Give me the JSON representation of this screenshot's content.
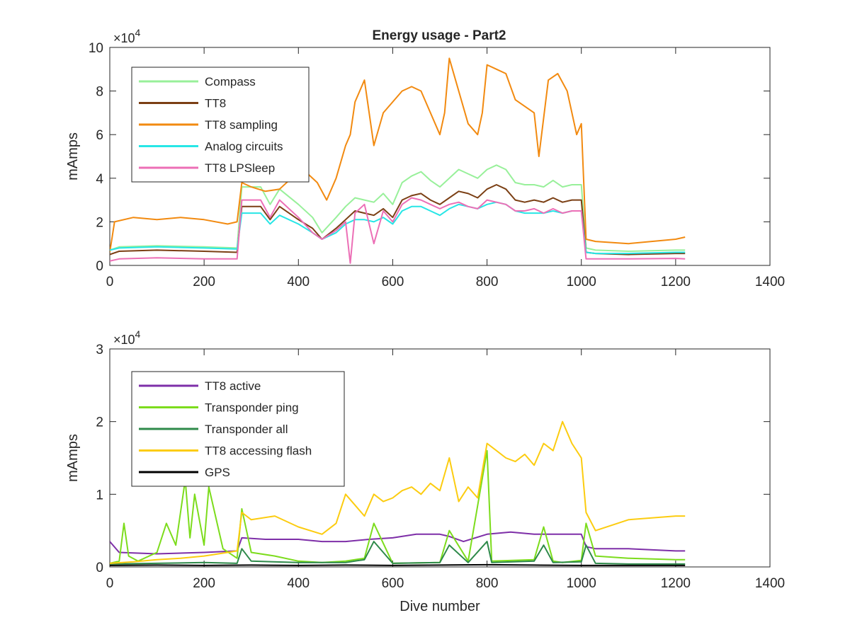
{
  "title": "Energy usage - Part2",
  "chart_data": [
    {
      "type": "line",
      "title": "Energy usage - Part2",
      "xlabel": "",
      "ylabel": "mAmps",
      "y_exponent_label": "×10",
      "y_exponent": "4",
      "xlim": [
        0,
        1400
      ],
      "ylim": [
        0,
        100000
      ],
      "x_ticks": [
        "0",
        "200",
        "400",
        "600",
        "800",
        "1000",
        "1200",
        "1400"
      ],
      "y_ticks": [
        "0",
        "2",
        "4",
        "6",
        "8",
        "10"
      ],
      "grid": false,
      "legend_position": "top-left",
      "series": [
        {
          "name": "Compass",
          "color": "#98f09a",
          "x": [
            0,
            20,
            100,
            200,
            270,
            280,
            320,
            340,
            360,
            400,
            430,
            450,
            480,
            500,
            520,
            540,
            560,
            580,
            600,
            620,
            640,
            660,
            680,
            700,
            720,
            740,
            760,
            780,
            800,
            820,
            840,
            860,
            880,
            900,
            920,
            940,
            960,
            980,
            1000,
            1010,
            1030,
            1100,
            1200,
            1220
          ],
          "values": [
            7000,
            8500,
            9000,
            8500,
            8000,
            36000,
            36000,
            28000,
            35000,
            28000,
            22000,
            15000,
            22000,
            27000,
            31000,
            30000,
            29000,
            33000,
            28000,
            38000,
            41000,
            43000,
            39000,
            36000,
            40000,
            44000,
            42000,
            40000,
            44000,
            46000,
            44000,
            38000,
            37000,
            37000,
            36000,
            39000,
            36000,
            37000,
            37000,
            8000,
            7000,
            6500,
            7000,
            7000
          ]
        },
        {
          "name": "TT8",
          "color": "#7b3f14",
          "x": [
            0,
            20,
            100,
            200,
            270,
            280,
            320,
            340,
            360,
            400,
            430,
            450,
            480,
            500,
            520,
            540,
            560,
            580,
            600,
            620,
            640,
            660,
            680,
            700,
            720,
            740,
            760,
            780,
            800,
            820,
            840,
            860,
            880,
            900,
            920,
            940,
            960,
            980,
            1000,
            1010,
            1030,
            1100,
            1200,
            1220
          ],
          "values": [
            5000,
            6500,
            7000,
            6500,
            6000,
            27000,
            27000,
            21000,
            27000,
            21000,
            17000,
            12000,
            17000,
            21000,
            25000,
            24000,
            23000,
            26000,
            22000,
            30000,
            32000,
            33000,
            30000,
            28000,
            31000,
            34000,
            33000,
            31000,
            35000,
            37000,
            35000,
            30000,
            29000,
            30000,
            29000,
            31000,
            29000,
            30000,
            30000,
            6000,
            5500,
            5000,
            5500,
            5500
          ]
        },
        {
          "name": "TT8 sampling",
          "color": "#f28a10",
          "x": [
            0,
            10,
            50,
            100,
            150,
            200,
            250,
            270,
            280,
            300,
            330,
            360,
            400,
            420,
            440,
            460,
            480,
            500,
            510,
            520,
            540,
            560,
            580,
            600,
            620,
            640,
            660,
            680,
            700,
            710,
            720,
            740,
            760,
            780,
            790,
            800,
            820,
            840,
            860,
            880,
            900,
            910,
            930,
            950,
            970,
            990,
            1000,
            1010,
            1030,
            1100,
            1200,
            1220
          ],
          "values": [
            6000,
            20000,
            22000,
            21000,
            22000,
            21000,
            19000,
            20000,
            38000,
            36000,
            34000,
            35000,
            43000,
            42000,
            38000,
            30000,
            40000,
            55000,
            60000,
            75000,
            85000,
            55000,
            70000,
            75000,
            80000,
            82000,
            80000,
            70000,
            60000,
            70000,
            95000,
            80000,
            65000,
            60000,
            70000,
            92000,
            90000,
            88000,
            76000,
            73000,
            70000,
            50000,
            85000,
            88000,
            80000,
            60000,
            65000,
            12000,
            11000,
            10000,
            12000,
            13000
          ]
        },
        {
          "name": "Analog circuits",
          "color": "#27e6e6",
          "x": [
            0,
            20,
            100,
            200,
            270,
            280,
            320,
            340,
            360,
            400,
            430,
            450,
            480,
            500,
            520,
            540,
            560,
            580,
            600,
            620,
            640,
            660,
            680,
            700,
            720,
            740,
            760,
            780,
            800,
            820,
            840,
            860,
            880,
            900,
            920,
            940,
            960,
            980,
            1000,
            1010,
            1030,
            1100,
            1200,
            1220
          ],
          "values": [
            7000,
            8000,
            8500,
            8000,
            7500,
            24000,
            24000,
            19000,
            23000,
            19000,
            15000,
            12000,
            15000,
            19000,
            21000,
            21000,
            20000,
            22000,
            19000,
            25000,
            27000,
            27000,
            25000,
            23000,
            26000,
            28000,
            27000,
            26000,
            28000,
            29000,
            28000,
            25000,
            24000,
            24000,
            24000,
            25000,
            24000,
            25000,
            25000,
            6000,
            5500,
            5500,
            6000,
            6000
          ]
        },
        {
          "name": "TT8 LPSleep",
          "color": "#ec6fb6",
          "x": [
            0,
            20,
            100,
            200,
            270,
            280,
            320,
            340,
            360,
            400,
            430,
            450,
            480,
            500,
            510,
            520,
            540,
            560,
            580,
            600,
            620,
            640,
            660,
            680,
            700,
            720,
            740,
            760,
            780,
            800,
            820,
            840,
            860,
            880,
            900,
            920,
            940,
            960,
            980,
            1000,
            1010,
            1030,
            1100,
            1200,
            1220
          ],
          "values": [
            2000,
            3000,
            3500,
            3000,
            3000,
            30000,
            30000,
            22000,
            30000,
            22000,
            15000,
            12000,
            16000,
            20000,
            1000,
            24000,
            28000,
            10000,
            25000,
            20000,
            28000,
            31000,
            30000,
            28000,
            26000,
            28000,
            29000,
            27000,
            26000,
            30000,
            29000,
            28000,
            25000,
            25000,
            26000,
            24000,
            26000,
            24000,
            25000,
            25000,
            3000,
            3000,
            3000,
            3200,
            3000
          ]
        }
      ]
    },
    {
      "type": "line",
      "title": "",
      "xlabel": "Dive number",
      "ylabel": "mAmps",
      "y_exponent_label": "×10",
      "y_exponent": "4",
      "xlim": [
        0,
        1400
      ],
      "ylim": [
        0,
        30000
      ],
      "x_ticks": [
        "0",
        "200",
        "400",
        "600",
        "800",
        "1000",
        "1200",
        "1400"
      ],
      "y_ticks": [
        "0",
        "1",
        "2",
        "3"
      ],
      "grid": false,
      "legend_position": "top-left",
      "series": [
        {
          "name": "TT8 active",
          "color": "#7e2fa8",
          "x": [
            0,
            20,
            100,
            200,
            270,
            280,
            330,
            400,
            450,
            500,
            550,
            600,
            650,
            700,
            720,
            750,
            800,
            850,
            900,
            950,
            1000,
            1010,
            1030,
            1100,
            1200,
            1220
          ],
          "values": [
            3500,
            2000,
            1800,
            2000,
            2200,
            4000,
            3800,
            3800,
            3500,
            3500,
            3800,
            4000,
            4500,
            4500,
            4200,
            3500,
            4500,
            4800,
            4500,
            4500,
            4500,
            2800,
            2500,
            2500,
            2200,
            2200
          ]
        },
        {
          "name": "Transponder ping",
          "color": "#7cdc1c",
          "x": [
            0,
            20,
            30,
            40,
            60,
            100,
            120,
            140,
            160,
            170,
            180,
            200,
            210,
            240,
            270,
            280,
            300,
            350,
            400,
            450,
            500,
            540,
            560,
            600,
            700,
            720,
            760,
            800,
            810,
            900,
            920,
            940,
            960,
            1000,
            1010,
            1030,
            1100,
            1200,
            1220
          ],
          "values": [
            500,
            800,
            6000,
            1500,
            800,
            2000,
            6000,
            3000,
            12000,
            4000,
            10000,
            3000,
            11000,
            2500,
            1200,
            8000,
            2000,
            1500,
            800,
            600,
            800,
            1200,
            6000,
            500,
            600,
            5000,
            800,
            16000,
            800,
            1000,
            5500,
            800,
            600,
            900,
            6000,
            1500,
            1200,
            1000,
            1000
          ]
        },
        {
          "name": "Transponder all",
          "color": "#2e8a4a",
          "x": [
            0,
            100,
            200,
            270,
            280,
            300,
            400,
            500,
            540,
            560,
            600,
            700,
            720,
            760,
            800,
            810,
            900,
            920,
            940,
            1000,
            1010,
            1030,
            1100,
            1200,
            1220
          ],
          "values": [
            400,
            500,
            600,
            500,
            2500,
            800,
            600,
            600,
            1000,
            3500,
            500,
            600,
            3000,
            600,
            3500,
            600,
            800,
            3000,
            600,
            700,
            3000,
            500,
            400,
            400,
            400
          ]
        },
        {
          "name": "TT8 accessing flash",
          "color": "#fccc10",
          "x": [
            0,
            50,
            100,
            150,
            200,
            250,
            270,
            280,
            300,
            350,
            400,
            450,
            480,
            500,
            520,
            540,
            560,
            580,
            600,
            620,
            640,
            660,
            680,
            700,
            720,
            740,
            760,
            780,
            800,
            820,
            840,
            860,
            880,
            900,
            920,
            940,
            960,
            980,
            1000,
            1010,
            1030,
            1100,
            1200,
            1220
          ],
          "values": [
            500,
            700,
            1000,
            1200,
            1500,
            2000,
            2200,
            7500,
            6500,
            7000,
            5500,
            4500,
            6000,
            10000,
            8500,
            7000,
            10000,
            9000,
            9500,
            10500,
            11000,
            10000,
            11500,
            10500,
            15000,
            9000,
            11000,
            9500,
            17000,
            16000,
            15000,
            14500,
            15500,
            14000,
            17000,
            16000,
            20000,
            17000,
            15000,
            7500,
            5000,
            6500,
            7000,
            7000
          ]
        },
        {
          "name": "GPS",
          "color": "#000000",
          "x": [
            0,
            100,
            200,
            300,
            400,
            500,
            600,
            700,
            800,
            900,
            1000,
            1100,
            1200,
            1220
          ],
          "values": [
            200,
            250,
            200,
            250,
            200,
            250,
            200,
            250,
            300,
            250,
            200,
            200,
            200,
            200
          ]
        }
      ]
    }
  ]
}
